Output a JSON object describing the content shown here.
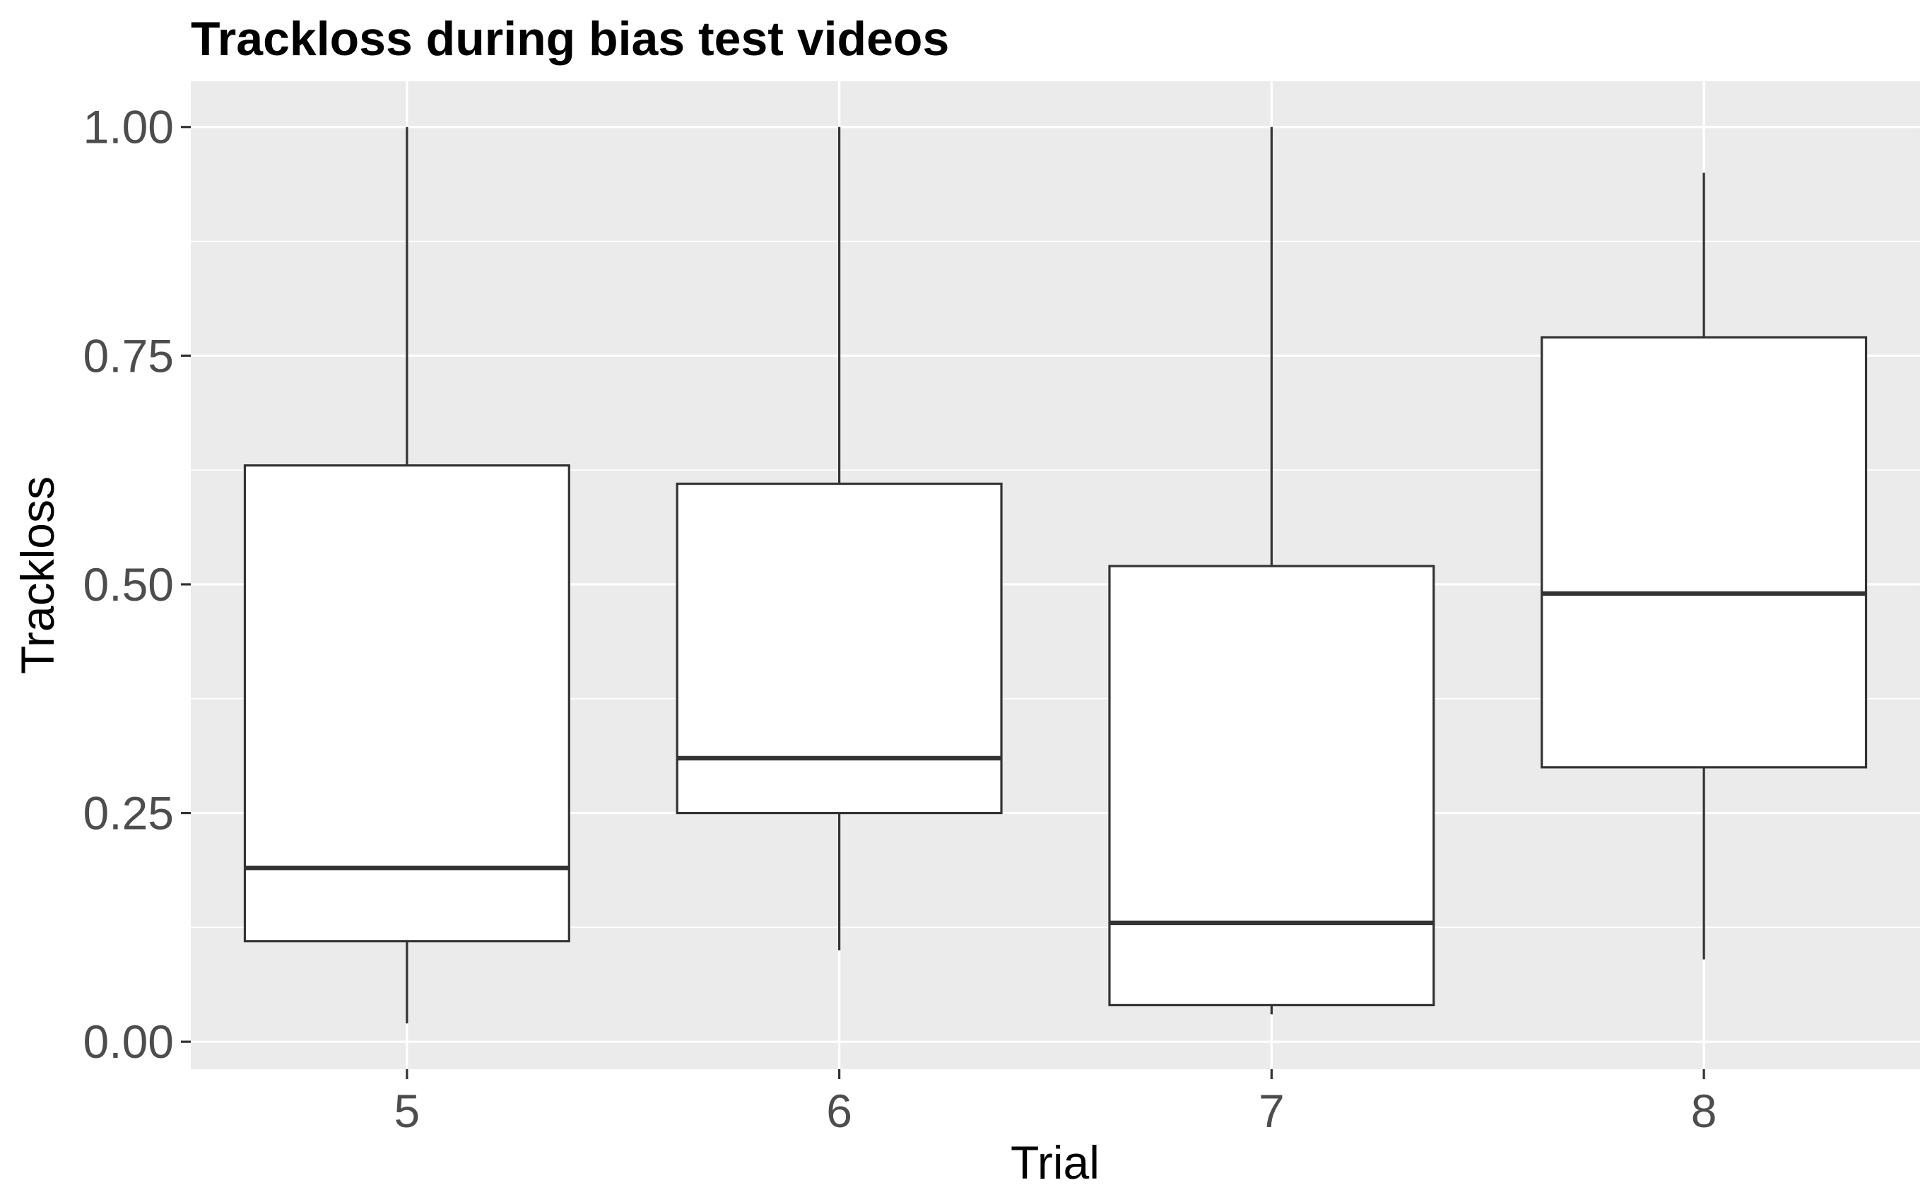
{
  "chart_data": {
    "type": "boxplot",
    "title": "Trackloss during bias test videos",
    "xlabel": "Trial",
    "ylabel": "Trackloss",
    "categories": [
      "5",
      "6",
      "7",
      "8"
    ],
    "boxes": [
      {
        "category": "5",
        "whisker_low": 0.02,
        "q1": 0.11,
        "median": 0.19,
        "q3": 0.63,
        "whisker_high": 1.0
      },
      {
        "category": "6",
        "whisker_low": 0.1,
        "q1": 0.25,
        "median": 0.31,
        "q3": 0.61,
        "whisker_high": 1.0
      },
      {
        "category": "7",
        "whisker_low": 0.03,
        "q1": 0.04,
        "median": 0.13,
        "q3": 0.52,
        "whisker_high": 1.0
      },
      {
        "category": "8",
        "whisker_low": 0.09,
        "q1": 0.3,
        "median": 0.49,
        "q3": 0.77,
        "whisker_high": 0.95
      }
    ],
    "y_ticks": [
      "0.00",
      "0.25",
      "0.50",
      "0.75",
      "1.00"
    ],
    "ylim": [
      -0.03,
      1.05
    ],
    "grid": true,
    "colors": {
      "panel_background": "#ebebeb",
      "grid": "#ffffff",
      "box_fill": "#ffffff",
      "box_stroke": "#333333",
      "tick_text": "#4d4d4d",
      "tick_mark": "#333333"
    }
  }
}
